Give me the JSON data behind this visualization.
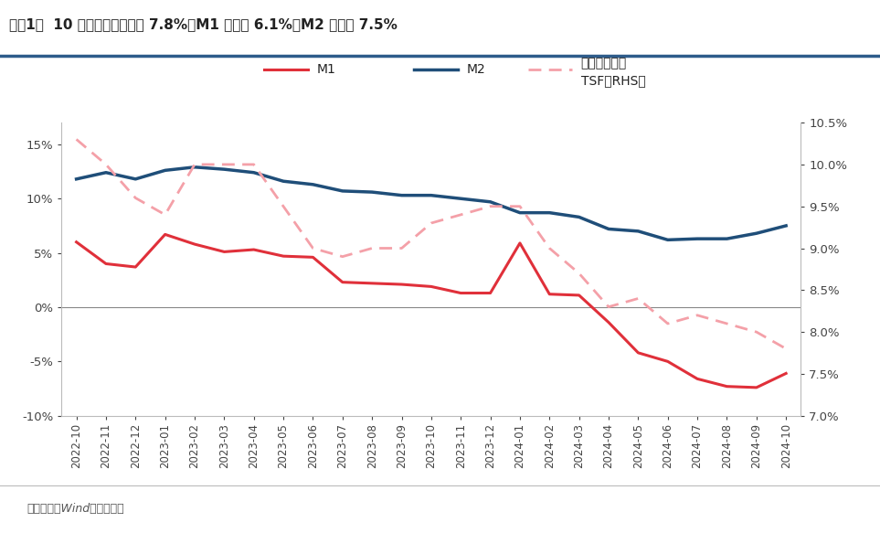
{
  "title": "图表1：  10 月社融存量同比增 7.8%、M1 同比减 6.1%、M2 同比增 7.5%",
  "source": "资料来源：Wind，中信建投",
  "categories": [
    "2022-10",
    "2022-11",
    "2022-12",
    "2023-01",
    "2023-02",
    "2023-03",
    "2023-04",
    "2023-05",
    "2023-06",
    "2023-07",
    "2023-08",
    "2023-09",
    "2023-10",
    "2023-11",
    "2023-12",
    "2024-01",
    "2024-02",
    "2024-03",
    "2024-04",
    "2024-05",
    "2024-06",
    "2024-07",
    "2024-08",
    "2024-09",
    "2024-10"
  ],
  "M1": [
    6.0,
    4.0,
    3.7,
    6.7,
    5.8,
    5.1,
    5.3,
    4.7,
    4.6,
    2.3,
    2.2,
    2.1,
    1.9,
    1.3,
    1.3,
    5.9,
    1.2,
    1.1,
    -1.4,
    -4.2,
    -5.0,
    -6.6,
    -7.3,
    -7.4,
    -6.1
  ],
  "M2": [
    11.8,
    12.4,
    11.8,
    12.6,
    12.9,
    12.7,
    12.4,
    11.6,
    11.3,
    10.7,
    10.6,
    10.3,
    10.3,
    10.0,
    9.7,
    8.7,
    8.7,
    8.3,
    7.2,
    7.0,
    6.2,
    6.3,
    6.3,
    6.8,
    7.5
  ],
  "TSF": [
    10.3,
    10.0,
    9.6,
    9.4,
    10.0,
    10.0,
    10.0,
    9.5,
    9.0,
    8.9,
    9.0,
    9.0,
    9.3,
    9.4,
    9.5,
    9.5,
    9.0,
    8.7,
    8.3,
    8.4,
    8.1,
    8.2,
    8.1,
    8.0,
    7.8
  ],
  "M1_color": "#e0303a",
  "M2_color": "#1f4e79",
  "TSF_color": "#f4a0a8",
  "left_ylim": [
    -10,
    17
  ],
  "left_yticks": [
    -10,
    -5,
    0,
    5,
    10,
    15
  ],
  "left_yticklabels": [
    "-10%",
    "-5%",
    "0%",
    "5%",
    "10%",
    "15%"
  ],
  "right_ylim": [
    7.0,
    10.5
  ],
  "right_yticks": [
    7.0,
    7.5,
    8.0,
    8.5,
    9.0,
    9.5,
    10.0,
    10.5
  ],
  "right_yticklabels": [
    "7.0%",
    "7.5%",
    "8.0%",
    "8.5%",
    "9.0%",
    "9.5%",
    "10.0%",
    "10.5%"
  ],
  "legend_M1": "M1",
  "legend_M2": "M2",
  "legend_TSF_line1": "社融（右轴）",
  "legend_TSF_line2": "TSF（RHS）",
  "background_color": "#ffffff",
  "title_color": "#222222",
  "source_color": "#555555",
  "header_line_color": "#2e5c8a",
  "zero_line_color": "#888888"
}
